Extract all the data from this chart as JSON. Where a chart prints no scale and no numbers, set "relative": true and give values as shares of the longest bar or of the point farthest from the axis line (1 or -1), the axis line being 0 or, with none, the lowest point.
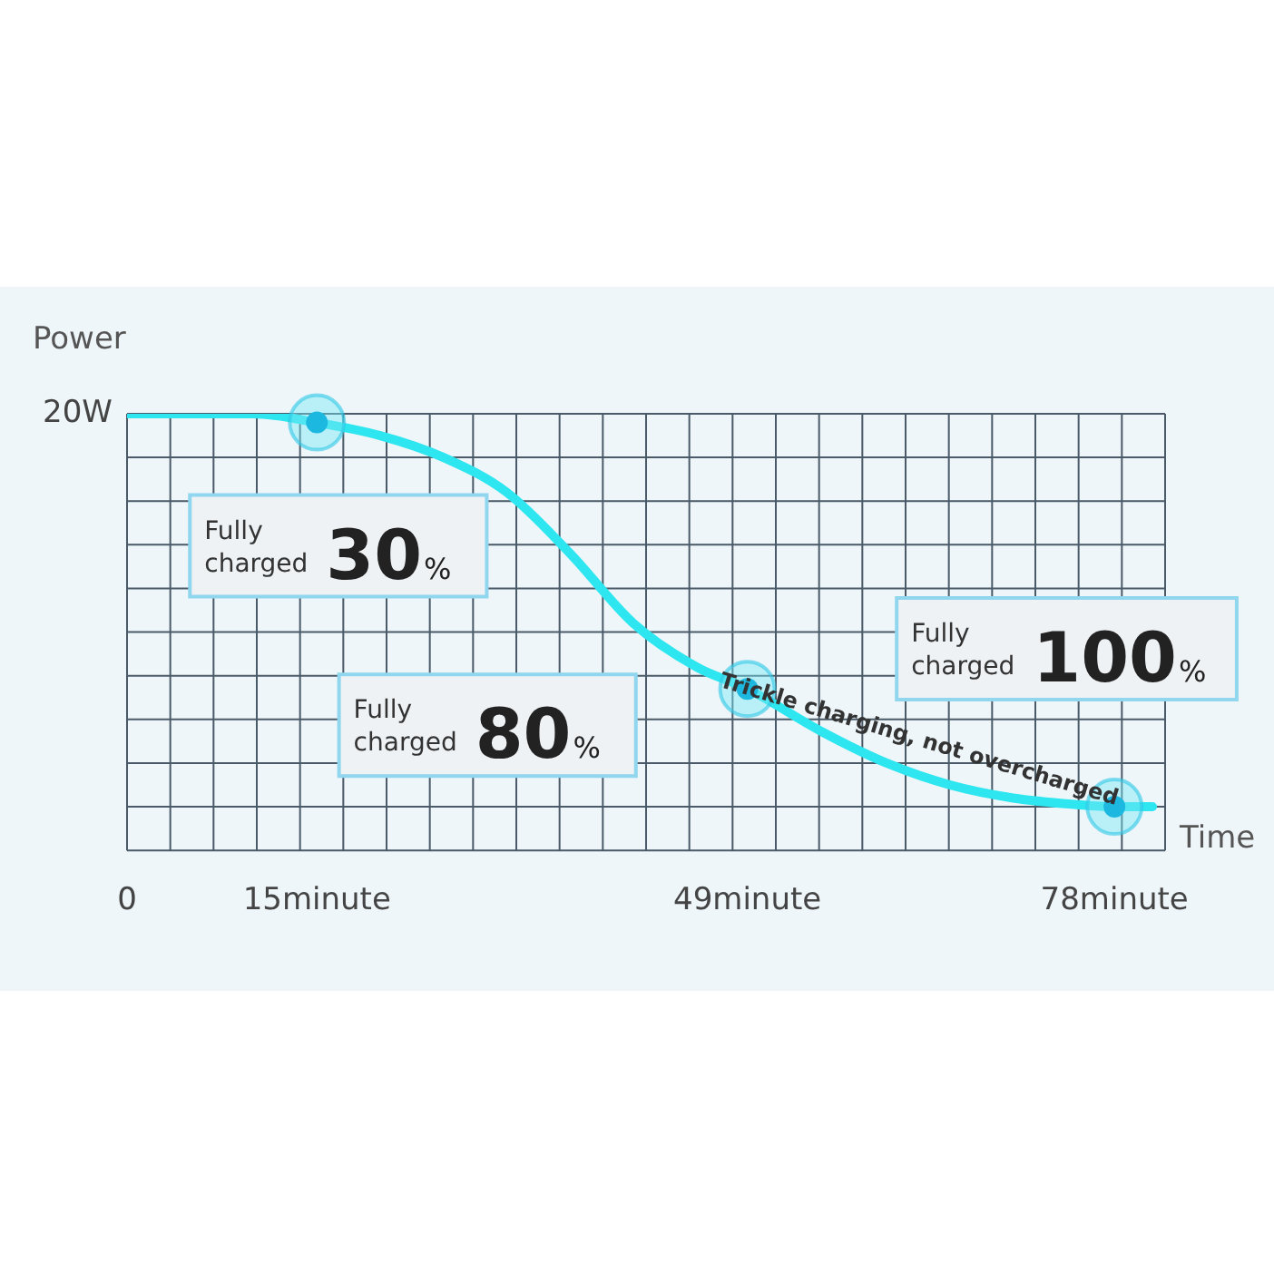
{
  "chart_data": {
    "type": "line",
    "relative": true,
    "ylabel": "Power",
    "xlabel": "Time",
    "grid": true,
    "legend": false,
    "marker": "none",
    "line_style": "solid",
    "xlim": [
      0,
      82
    ],
    "xticks": [
      0,
      {
        "value": 15,
        "label": "15minute"
      },
      {
        "value": 49,
        "label": "49minute"
      },
      {
        "value": 78,
        "label": "78minute"
      }
    ],
    "x": [
      0,
      5,
      10,
      15,
      20,
      25,
      30,
      35,
      40,
      45,
      49,
      55,
      60,
      65,
      70,
      75,
      78,
      81
    ],
    "series": [
      {
        "color": "#2ee6f0",
        "values": [
          1.0,
          1.0,
          1.0,
          0.98,
          0.95,
          0.9,
          0.82,
          0.68,
          0.52,
          0.42,
          0.37,
          0.27,
          0.2,
          0.15,
          0.12,
          0.105,
          0.1,
          0.1
        ]
      }
    ],
    "annotations": [
      "20W",
      {
        "text": "Fully charged 30%",
        "x": 15,
        "y": 0.98
      },
      {
        "text": "Fully charged 80%",
        "x": 49,
        "y": 0.37
      },
      {
        "text": "Fully charged 100%",
        "x": 78,
        "y": 0.1
      },
      {
        "text": "Trickle charging, not overcharged",
        "x": 62,
        "y": 0.2
      }
    ]
  }
}
